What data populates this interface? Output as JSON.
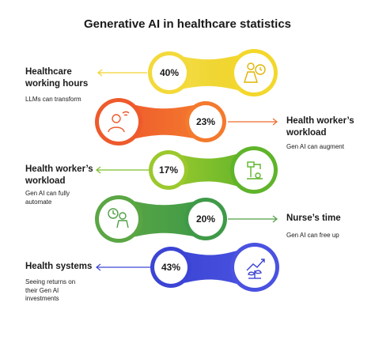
{
  "title": "Generative AI in healthcare statistics",
  "rows": [
    {
      "percent": "40%",
      "label_line1": "Healthcare",
      "label_line2": "working hours",
      "sub_line1": "LLMs can transform",
      "sub_line2": "",
      "sub_line3": "",
      "color": "#f2d22e",
      "icon": "person-clock-icon"
    },
    {
      "percent": "23%",
      "label_line1": "Health worker’s",
      "label_line2": "workload",
      "sub_line1": "Gen AI can augment",
      "sub_line2": "",
      "sub_line3": "",
      "color": "#ef6a2f",
      "icon": "doctor-wifi-icon"
    },
    {
      "percent": "17%",
      "label_line1": "Health worker’s",
      "label_line2": "workload",
      "sub_line1": "Gen AI can fully",
      "sub_line2": "automate",
      "sub_line3": "",
      "color": "#7cbd2a",
      "icon": "robot-arm-icon"
    },
    {
      "percent": "20%",
      "label_line1": "Nurse’s time",
      "label_line2": "",
      "sub_line1": "Gen AI can free up",
      "sub_line2": "",
      "sub_line3": "",
      "color": "#4f9e46",
      "icon": "nurse-clock-icon"
    },
    {
      "percent": "43%",
      "label_line1": "Health systems",
      "label_line2": "",
      "sub_line1": "Seeing returns on",
      "sub_line2": "their Gen AI",
      "sub_line3": "investments",
      "color": "#3f48d6",
      "icon": "plant-growth-icon"
    }
  ]
}
